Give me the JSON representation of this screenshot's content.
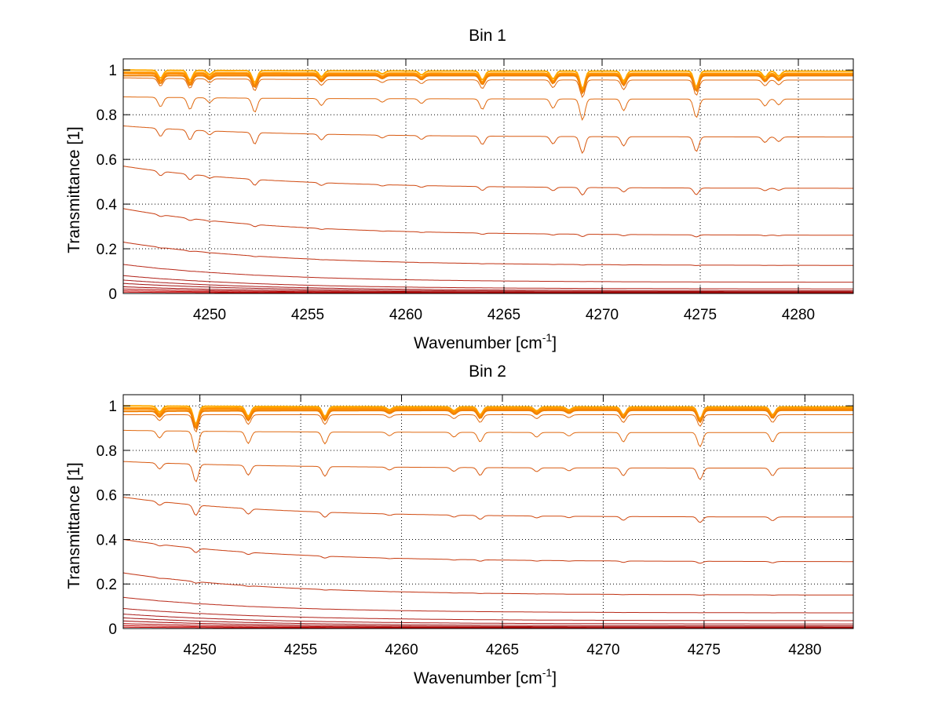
{
  "chart_data": [
    {
      "type": "line",
      "title": "Bin 1",
      "xlabel": "Wavenumber [cm",
      "xlabel_sup": "-1",
      "xlabel_end": "]",
      "ylabel": "Transmittance [1]",
      "xlim": [
        4245.6,
        4282.8
      ],
      "ylim": [
        0,
        1.05
      ],
      "xticks": [
        4250,
        4255,
        4260,
        4265,
        4270,
        4275,
        4280
      ],
      "xtick_labels": [
        "4250",
        "4255",
        "4260",
        "4265",
        "4270",
        "4275",
        "4280"
      ],
      "yticks": [
        0,
        0.2,
        0.4,
        0.6,
        0.8,
        1
      ],
      "ytick_labels": [
        "0",
        "0.2",
        "0.4",
        "0.6",
        "0.8",
        "1"
      ],
      "grid": true,
      "absorption_lines": [
        {
          "x": 4247.5,
          "depth": 0.04
        },
        {
          "x": 4249.0,
          "depth": 0.05
        },
        {
          "x": 4250.0,
          "depth": 0.02
        },
        {
          "x": 4252.3,
          "depth": 0.06
        },
        {
          "x": 4255.7,
          "depth": 0.03
        },
        {
          "x": 4258.8,
          "depth": 0.015
        },
        {
          "x": 4260.8,
          "depth": 0.02
        },
        {
          "x": 4263.9,
          "depth": 0.045
        },
        {
          "x": 4267.5,
          "depth": 0.04
        },
        {
          "x": 4269.0,
          "depth": 0.09
        },
        {
          "x": 4271.1,
          "depth": 0.05
        },
        {
          "x": 4274.8,
          "depth": 0.08
        },
        {
          "x": 4278.3,
          "depth": 0.03
        },
        {
          "x": 4279.0,
          "depth": 0.025
        }
      ],
      "series": [
        {
          "start": 1.0,
          "end": 0.995,
          "color": "#ffaa00"
        },
        {
          "start": 0.99,
          "end": 0.985,
          "color": "#ff9a00"
        },
        {
          "start": 0.985,
          "end": 0.98,
          "color": "#ff8c00"
        },
        {
          "start": 0.975,
          "end": 0.975,
          "color": "#f08000"
        },
        {
          "start": 0.965,
          "end": 0.955,
          "color": "#e06a10"
        },
        {
          "start": 0.88,
          "end": 0.87,
          "color": "#e06a10"
        },
        {
          "start": 0.75,
          "end": 0.7,
          "color": "#d85a10"
        },
        {
          "start": 0.57,
          "end": 0.47,
          "color": "#d04a10"
        },
        {
          "start": 0.38,
          "end": 0.26,
          "color": "#c83c10"
        },
        {
          "start": 0.23,
          "end": 0.125,
          "color": "#c03010"
        },
        {
          "start": 0.13,
          "end": 0.05,
          "color": "#b82818"
        },
        {
          "start": 0.08,
          "end": 0.02,
          "color": "#b02018"
        },
        {
          "start": 0.06,
          "end": 0.012,
          "color": "#a81818"
        },
        {
          "start": 0.045,
          "end": 0.008,
          "color": "#a01010"
        },
        {
          "start": 0.03,
          "end": 0.005,
          "color": "#a00000"
        },
        {
          "start": 0.02,
          "end": 0.003,
          "color": "#b00000"
        },
        {
          "start": 0.012,
          "end": 0.002,
          "color": "#c00000"
        },
        {
          "start": 0.006,
          "end": 0.001,
          "color": "#d00000"
        }
      ]
    },
    {
      "type": "line",
      "title": "Bin 2",
      "xlabel": "Wavenumber [cm",
      "xlabel_sup": "-1",
      "xlabel_end": "]",
      "ylabel": "Transmittance [1]",
      "xlim": [
        4246.2,
        4282.4
      ],
      "ylim": [
        0,
        1.05
      ],
      "xticks": [
        4250,
        4255,
        4260,
        4265,
        4270,
        4275,
        4280
      ],
      "xtick_labels": [
        "4250",
        "4255",
        "4260",
        "4265",
        "4270",
        "4275",
        "4280"
      ],
      "yticks": [
        0,
        0.2,
        0.4,
        0.6,
        0.8,
        1
      ],
      "ytick_labels": [
        "0",
        "0.2",
        "0.4",
        "0.6",
        "0.8",
        "1"
      ],
      "grid": true,
      "absorption_lines": [
        {
          "x": 4248.0,
          "depth": 0.03
        },
        {
          "x": 4249.8,
          "depth": 0.09
        },
        {
          "x": 4252.4,
          "depth": 0.05
        },
        {
          "x": 4256.2,
          "depth": 0.05
        },
        {
          "x": 4259.4,
          "depth": 0.015
        },
        {
          "x": 4262.6,
          "depth": 0.02
        },
        {
          "x": 4263.9,
          "depth": 0.04
        },
        {
          "x": 4266.7,
          "depth": 0.02
        },
        {
          "x": 4268.3,
          "depth": 0.015
        },
        {
          "x": 4271.0,
          "depth": 0.04
        },
        {
          "x": 4274.8,
          "depth": 0.06
        },
        {
          "x": 4278.4,
          "depth": 0.04
        }
      ],
      "series": [
        {
          "start": 1.0,
          "end": 0.995,
          "color": "#ffaa00"
        },
        {
          "start": 0.99,
          "end": 0.99,
          "color": "#ff9a00"
        },
        {
          "start": 0.985,
          "end": 0.985,
          "color": "#ff8c00"
        },
        {
          "start": 0.975,
          "end": 0.98,
          "color": "#f08000"
        },
        {
          "start": 0.96,
          "end": 0.96,
          "color": "#e06a10"
        },
        {
          "start": 0.89,
          "end": 0.88,
          "color": "#e06a10"
        },
        {
          "start": 0.75,
          "end": 0.72,
          "color": "#d85a10"
        },
        {
          "start": 0.59,
          "end": 0.5,
          "color": "#d04a10"
        },
        {
          "start": 0.4,
          "end": 0.3,
          "color": "#c83c10"
        },
        {
          "start": 0.25,
          "end": 0.15,
          "color": "#c03010"
        },
        {
          "start": 0.14,
          "end": 0.07,
          "color": "#b82818"
        },
        {
          "start": 0.09,
          "end": 0.035,
          "color": "#b02018"
        },
        {
          "start": 0.065,
          "end": 0.02,
          "color": "#a81818"
        },
        {
          "start": 0.048,
          "end": 0.012,
          "color": "#a01010"
        },
        {
          "start": 0.034,
          "end": 0.007,
          "color": "#a00000"
        },
        {
          "start": 0.022,
          "end": 0.004,
          "color": "#b00000"
        },
        {
          "start": 0.013,
          "end": 0.002,
          "color": "#c00000"
        },
        {
          "start": 0.006,
          "end": 0.001,
          "color": "#d00000"
        }
      ]
    }
  ],
  "colors": {
    "axis": "#000000",
    "grid": "#000000",
    "background": "#ffffff"
  }
}
